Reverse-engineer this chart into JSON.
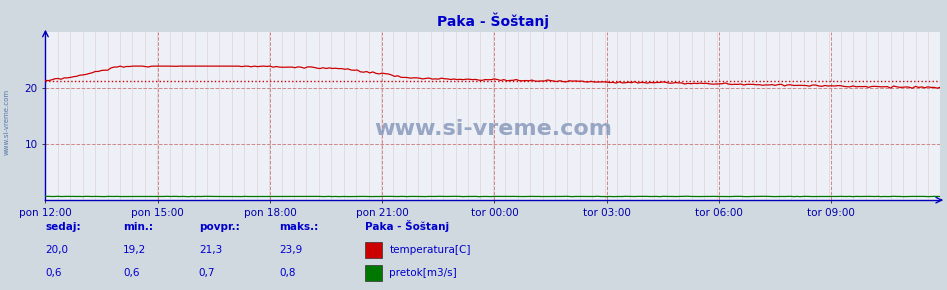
{
  "title": "Paka - Šoštanj",
  "bg_color": "#d0d8e0",
  "plot_bg_color": "#eef0f8",
  "title_color": "#0000cc",
  "axis_color": "#0000bb",
  "tick_color": "#0000aa",
  "grid_color_v": "#cc8888",
  "grid_color_h": "#cc8888",
  "grid_color_minor_v": "#ddcccc",
  "xlim": [
    0,
    287
  ],
  "ylim": [
    0,
    30
  ],
  "yticks": [
    10,
    20
  ],
  "xtick_labels": [
    "pon 12:00",
    "pon 15:00",
    "pon 18:00",
    "pon 21:00",
    "tor 00:00",
    "tor 03:00",
    "tor 06:00",
    "tor 09:00"
  ],
  "xtick_positions": [
    0,
    36,
    72,
    108,
    144,
    180,
    216,
    252
  ],
  "temp_color": "#cc0000",
  "flow_color": "#007700",
  "avg_line_color": "#cc0000",
  "avg_value": 21.3,
  "watermark": "www.si-vreme.com",
  "watermark_color": "#8899bb",
  "legend_title": "Paka - Šoštanj",
  "legend_items": [
    {
      "label": "temperatura[C]",
      "color": "#cc0000"
    },
    {
      "label": "pretok[m3/s]",
      "color": "#007700"
    }
  ],
  "stats": {
    "sedaj": {
      "temp": "20,0",
      "flow": "0,6"
    },
    "min": {
      "temp": "19,2",
      "flow": "0,6"
    },
    "povpr": {
      "temp": "21,3",
      "flow": "0,7"
    },
    "maks": {
      "temp": "23,9",
      "flow": "0,8"
    }
  },
  "sidebar_text": "www.si-vreme.com"
}
